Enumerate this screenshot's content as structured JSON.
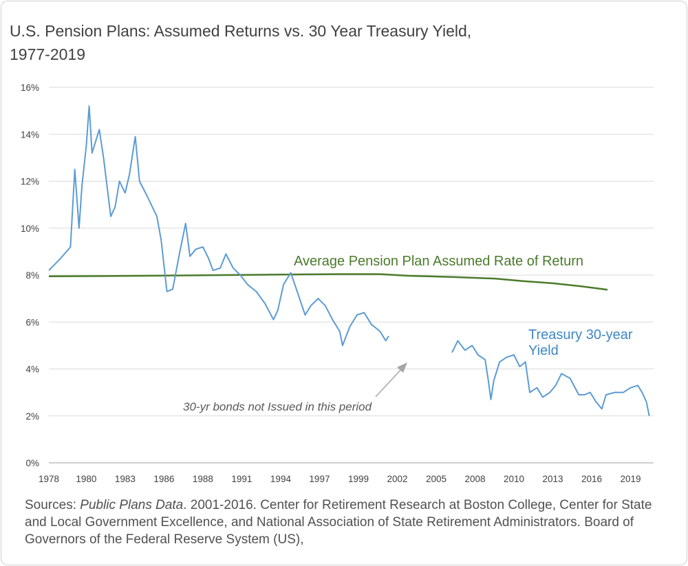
{
  "title_line1": "U.S. Pension Plans: Assumed Returns vs. 30 Year Treasury Yield,",
  "title_line2": "1977-2019",
  "sources": {
    "prefix": "Sources: ",
    "publication": "Public Plans Data",
    "rest": ". 2001-2016. Center for Retirement Research at Boston College, Center for State and Local Government Excellence, and National Association of State Retirement Administrators. Board of Governors of the Federal Reserve System (US),"
  },
  "colors": {
    "pension": "#4a7a2a",
    "treasury": "#5b9bd5",
    "grid": "#d9d9d9",
    "axis": "#bfbfbf",
    "arrow": "#a6a6a6"
  },
  "chart_data": {
    "type": "line",
    "title": "U.S. Pension Plans: Assumed Returns vs. 30 Year Treasury Yield, 1977-2019",
    "xlim": [
      1978,
      2020
    ],
    "ylim": [
      0,
      16
    ],
    "grid": true,
    "x_tick_labels": [
      "1978",
      "1980",
      "1983",
      "1986",
      "1988",
      "1991",
      "1994",
      "1997",
      "1999",
      "2002",
      "2005",
      "2008",
      "2010",
      "2013",
      "2016",
      "2019"
    ],
    "x_tick_values": [
      1978,
      1980.6,
      1983.3,
      1986,
      1988.7,
      1991.4,
      1994.1,
      1996.8,
      1999.5,
      2002.2,
      2004.9,
      2007.6,
      2010.3,
      2013.0,
      2015.7,
      2018.4
    ],
    "y_tick_labels": [
      "0%",
      "2%",
      "4%",
      "6%",
      "8%",
      "10%",
      "12%",
      "14%",
      "16%"
    ],
    "y_tick_values": [
      0,
      2,
      4,
      6,
      8,
      10,
      12,
      14,
      16
    ],
    "series": [
      {
        "name": "Average Pension Plan Assumed Rate of Return",
        "x": [
          1978,
          1982,
          1986,
          1990,
          1994,
          1998,
          2001,
          2003,
          2006,
          2009,
          2011,
          2013,
          2015,
          2016.8
        ],
        "y": [
          7.95,
          7.96,
          7.98,
          8.0,
          8.02,
          8.04,
          8.04,
          7.97,
          7.92,
          7.85,
          7.74,
          7.65,
          7.52,
          7.38
        ]
      },
      {
        "name": "Treasury 30-year Yield",
        "x": [
          1978,
          1978.8,
          1979.5,
          1979.8,
          1980.1,
          1980.3,
          1980.6,
          1980.8,
          1981.0,
          1981.5,
          1981.8,
          1982.3,
          1982.6,
          1982.9,
          1983.3,
          1983.6,
          1984.0,
          1984.3,
          1984.8,
          1985.5,
          1985.8,
          1986.2,
          1986.6,
          1987.1,
          1987.5,
          1987.8,
          1988.2,
          1988.7,
          1989.1,
          1989.4,
          1989.9,
          1990.3,
          1990.8,
          1991.3,
          1991.8,
          1992.4,
          1993.0,
          1993.6,
          1993.9,
          1994.3,
          1994.8,
          1995.3,
          1995.8,
          1996.2,
          1996.7,
          1997.2,
          1997.7,
          1998.2,
          1998.4,
          1998.9,
          1999.4,
          1999.9,
          2000.4,
          2001.0,
          2001.4,
          2001.6,
          null,
          2006.0,
          2006.4,
          2006.9,
          2007.4,
          2007.8,
          2008.3,
          2008.5,
          2008.7,
          2008.9,
          2009.3,
          2009.8,
          2010.3,
          2010.7,
          2011.1,
          2011.4,
          2011.9,
          2012.3,
          2012.8,
          2013.2,
          2013.6,
          2014.2,
          2014.8,
          2015.2,
          2015.6,
          2016.0,
          2016.4,
          2016.7,
          2017.3,
          2017.9,
          2018.4,
          2018.9,
          2019.2,
          2019.5,
          2019.7
        ],
        "y": [
          8.2,
          8.7,
          9.2,
          12.5,
          10.0,
          11.8,
          13.5,
          15.2,
          13.2,
          14.2,
          13.0,
          10.5,
          10.9,
          12.0,
          11.5,
          12.3,
          13.9,
          12.0,
          11.4,
          10.5,
          9.5,
          7.3,
          7.4,
          9.0,
          10.2,
          8.8,
          9.1,
          9.2,
          8.7,
          8.2,
          8.3,
          8.9,
          8.3,
          8.0,
          7.6,
          7.3,
          6.8,
          6.1,
          6.5,
          7.6,
          8.1,
          7.2,
          6.3,
          6.7,
          7.0,
          6.7,
          6.1,
          5.6,
          5.0,
          5.8,
          6.3,
          6.4,
          5.9,
          5.6,
          5.2,
          5.4,
          null,
          4.7,
          5.2,
          4.8,
          5.0,
          4.6,
          4.4,
          3.6,
          2.7,
          3.5,
          4.3,
          4.5,
          4.6,
          4.1,
          4.3,
          3.0,
          3.2,
          2.8,
          3.0,
          3.3,
          3.8,
          3.6,
          2.9,
          2.9,
          3.0,
          2.6,
          2.3,
          2.9,
          3.0,
          3.0,
          3.2,
          3.3,
          3.0,
          2.6,
          2.0
        ]
      }
    ],
    "annotations": {
      "pension_label": "Average Pension Plan Assumed Rate of Return",
      "treasury_label_line1": "Treasury 30-year",
      "treasury_label_line2": "Yield",
      "gap_note": "30-yr bonds not Issued in this period"
    }
  }
}
